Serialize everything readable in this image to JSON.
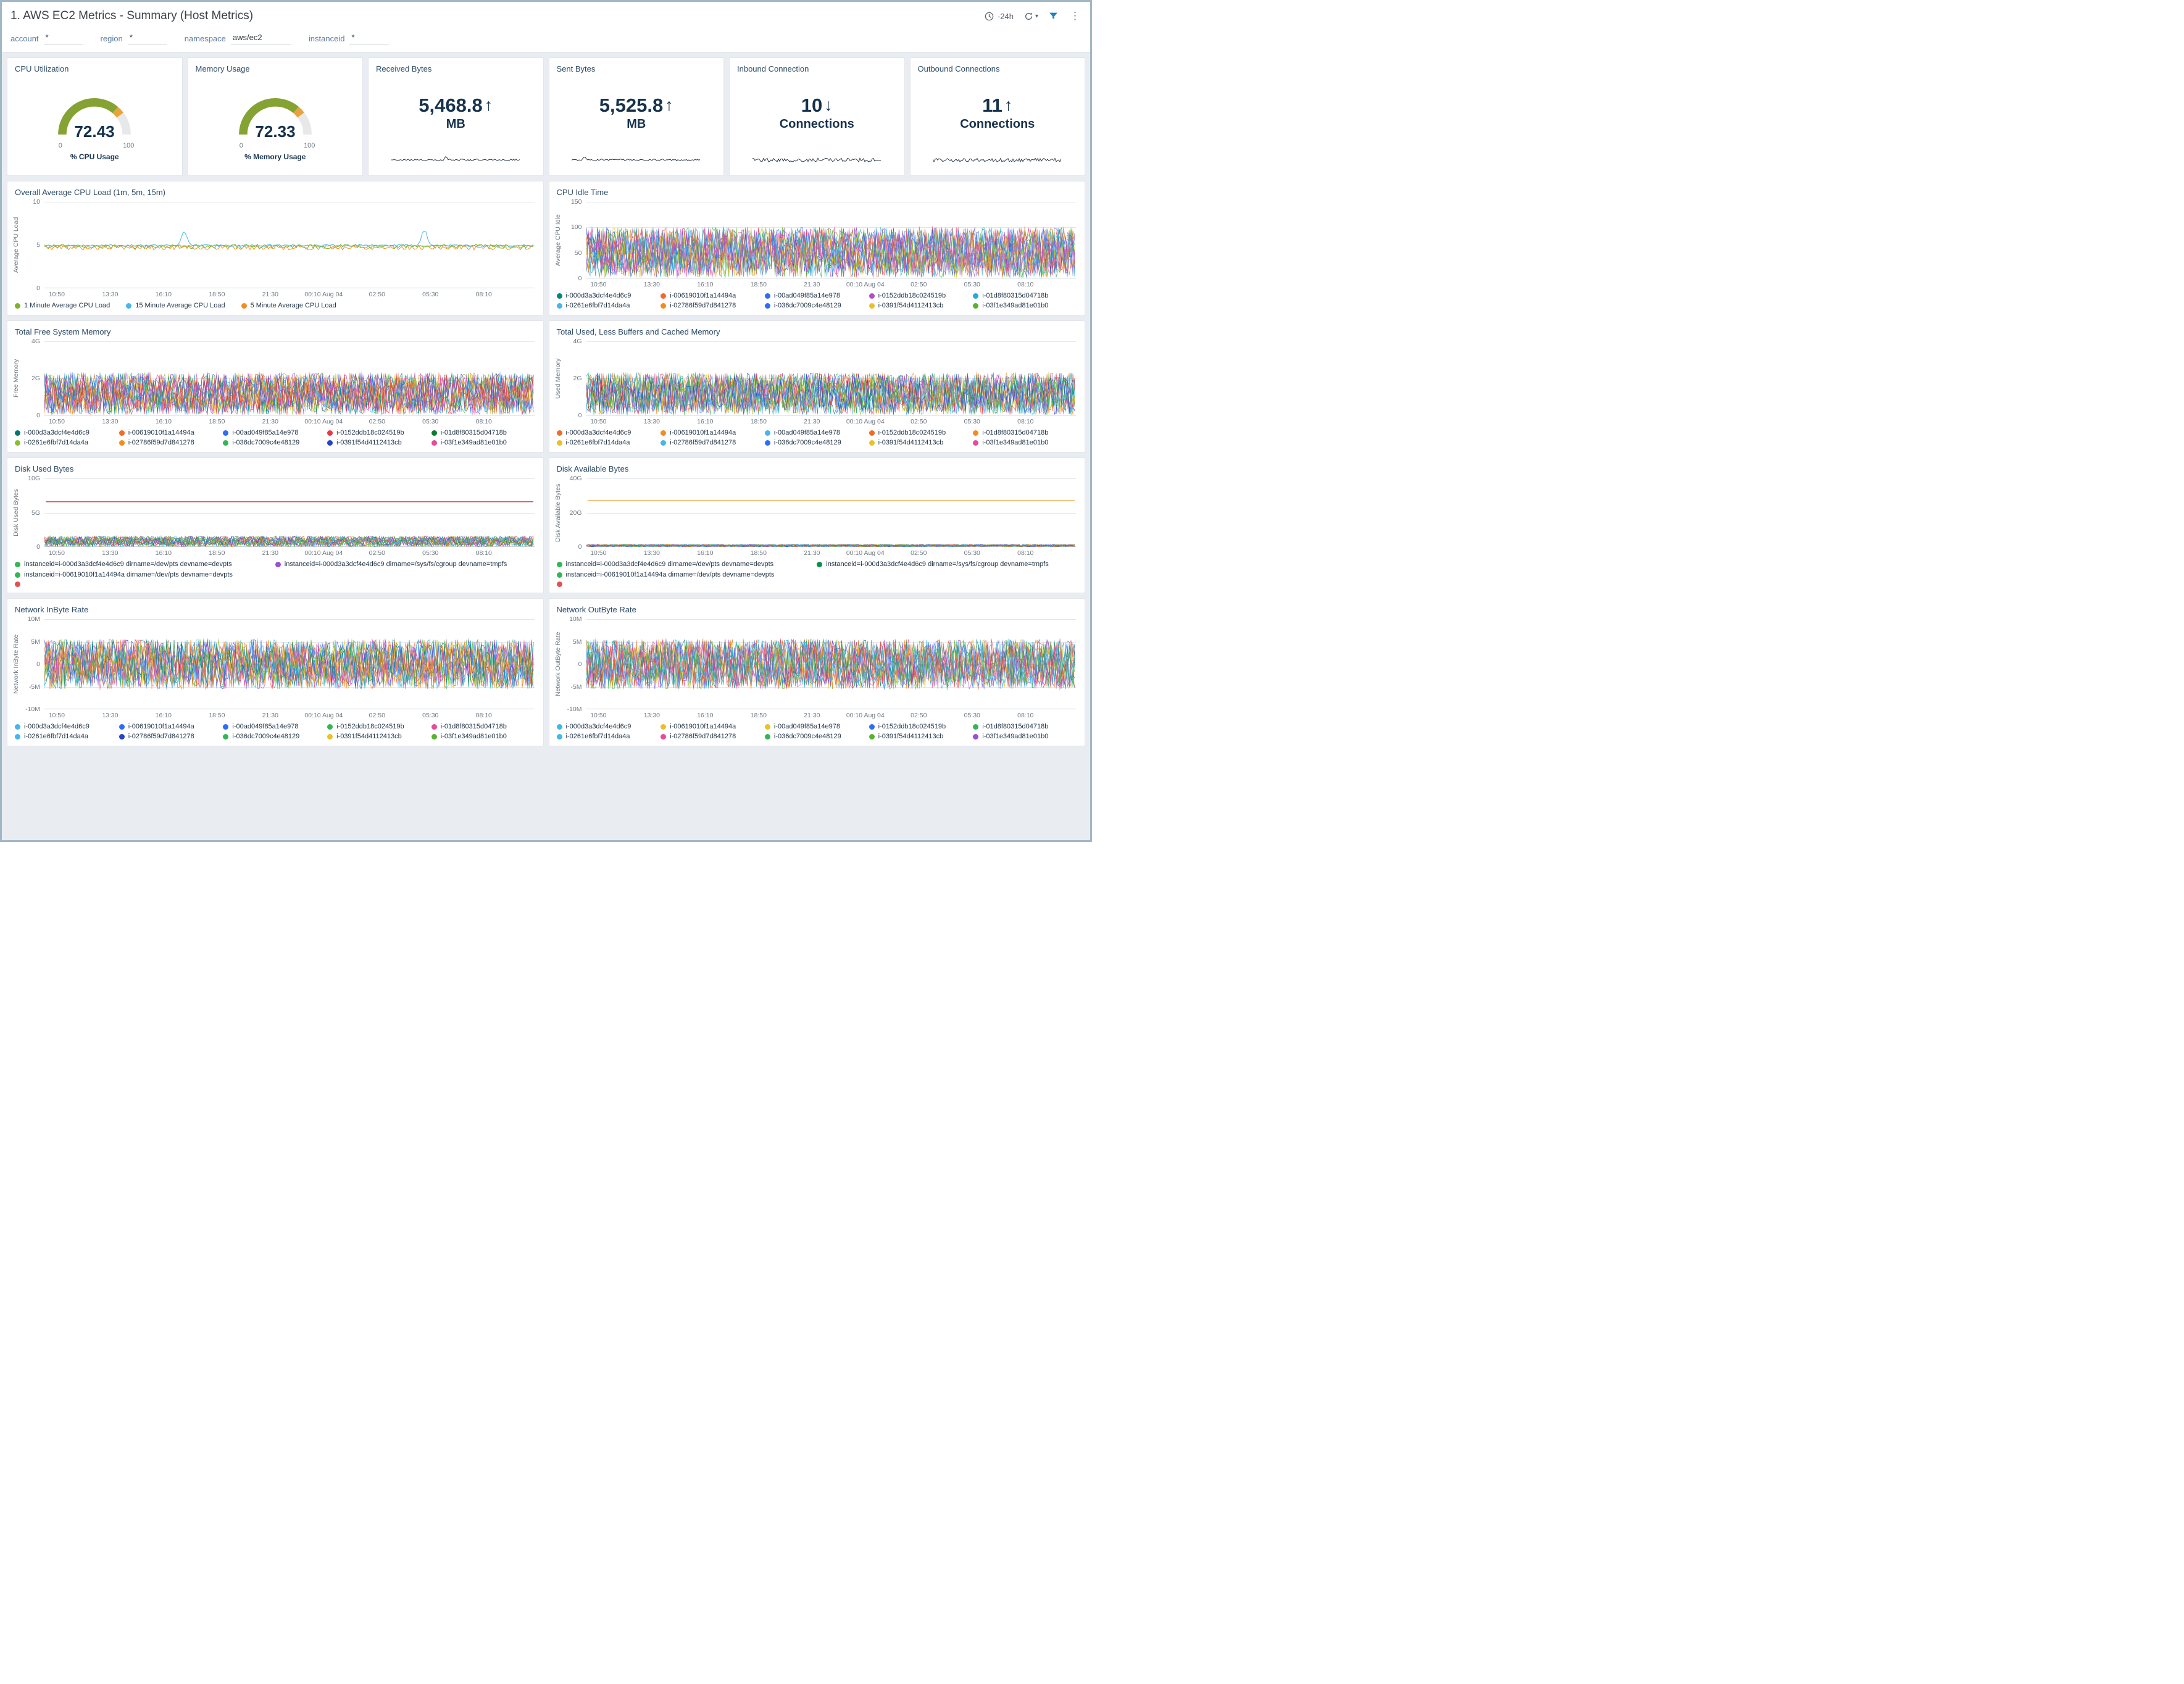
{
  "header": {
    "title": "1. AWS EC2 Metrics - Summary (Host Metrics)",
    "time_range": "-24h"
  },
  "filters": [
    {
      "label": "account",
      "value": "*"
    },
    {
      "label": "region",
      "value": "*"
    },
    {
      "label": "namespace",
      "value": "aws/ec2"
    },
    {
      "label": "instanceid",
      "value": "*"
    }
  ],
  "kpis": {
    "cpu": {
      "title": "CPU Utilization",
      "value": "72.43",
      "value_num": 72.43,
      "min": "0",
      "max": "100",
      "caption": "% CPU Usage"
    },
    "mem": {
      "title": "Memory Usage",
      "value": "72.33",
      "value_num": 72.33,
      "min": "0",
      "max": "100",
      "caption": "% Memory Usage"
    },
    "received": {
      "title": "Received Bytes",
      "value": "5,468.8",
      "arrow": "↑",
      "unit": "MB"
    },
    "sent": {
      "title": "Sent Bytes",
      "value": "5,525.8",
      "arrow": "↑",
      "unit": "MB"
    },
    "inbound": {
      "title": "Inbound Connection",
      "value": "10",
      "arrow": "↓",
      "unit": "Connections"
    },
    "outbound": {
      "title": "Outbound Connections",
      "value": "11",
      "arrow": "↑",
      "unit": "Connections"
    }
  },
  "gauge_colors": {
    "green": "#84a333",
    "orange": "#e8a33d",
    "track": "#e6e8ea"
  },
  "palette": [
    "#58b32f",
    "#f26b27",
    "#2f6df6",
    "#b24fc8",
    "#29a5e8",
    "#e8c227",
    "#e84b9a",
    "#00877c",
    "#f28e1c",
    "#6a5acd",
    "#e63946",
    "#35b558",
    "#45b7e8",
    "#8bbf2f",
    "#2743c7",
    "#d4672f",
    "#9a4fd4",
    "#1ca9a9"
  ],
  "xticks": [
    "10:50",
    "13:30",
    "16:10",
    "18:50",
    "21:30",
    "00:10 Aug 04",
    "02:50",
    "05:30",
    "08:10"
  ],
  "sparks": {
    "received": {
      "amp": 3,
      "bump": {
        "at": 0.42,
        "h": 6
      },
      "seed": 21,
      "color": "#1c2b39"
    },
    "sent": {
      "amp": 3,
      "bump": {
        "at": 0.1,
        "h": 4
      },
      "seed": 22,
      "color": "#1c2b39"
    },
    "inbound": {
      "amp": 6,
      "seed": 23,
      "color": "#1c2b39"
    },
    "outbound": {
      "amp": 6,
      "seed": 24,
      "color": "#1c2b39"
    }
  },
  "charts": {
    "cpuLoad": {
      "title": "Overall Average CPU Load (1m, 5m, 15m)",
      "ylabel": "Average CPU Load",
      "ylim": [
        0,
        10
      ],
      "yticks": [
        {
          "v": 0,
          "label": "0"
        },
        {
          "v": 5,
          "label": "5"
        },
        {
          "v": 10,
          "label": "10"
        }
      ],
      "legend": [
        {
          "label": "1 Minute Average CPU Load",
          "color": "#7db32a"
        },
        {
          "label": "15 Minute Average CPU Load",
          "color": "#45b7e8"
        },
        {
          "label": "5 Minute Average CPU Load",
          "color": "#f28e1c"
        }
      ],
      "render": {
        "kind": "cpuload",
        "spikes": [
          [
            0.285,
            6.6
          ],
          [
            0.775,
            6.7
          ]
        ]
      },
      "seed": 5
    },
    "cpuIdle": {
      "title": "CPU Idle Time",
      "ylabel": "Average CPU Idle",
      "ylim": [
        0,
        150
      ],
      "yticks": [
        {
          "v": 0,
          "label": "0"
        },
        {
          "v": 50,
          "label": "50"
        },
        {
          "v": 100,
          "label": "100"
        },
        {
          "v": 150,
          "label": "150"
        }
      ],
      "legend": [
        {
          "label": "i-000d3a3dcf4e4d6c9",
          "color": "#00877c"
        },
        {
          "label": "i-00619010f1a14494a",
          "color": "#f26b27"
        },
        {
          "label": "i-00ad049f85a14e978",
          "color": "#2f6df6"
        },
        {
          "label": "i-0152ddb18c024519b",
          "color": "#b24fc8"
        },
        {
          "label": "i-01d8f80315d04718b",
          "color": "#29a5e8"
        },
        {
          "label": "i-0261e6fbf7d14da4a",
          "color": "#45b7e8"
        },
        {
          "label": "i-02786f59d7d841278",
          "color": "#f28e1c"
        },
        {
          "label": "i-036dc7009c4e48129",
          "color": "#2f6df6"
        },
        {
          "label": "i-0391f54d4112413cb",
          "color": "#e8c227"
        },
        {
          "label": "i-03f1e349ad81e01b0",
          "color": "#58b32f"
        }
      ],
      "render": {
        "kind": "band",
        "min": 2,
        "max": 100,
        "lines": 16
      },
      "seed": 9
    },
    "freeMem": {
      "title": "Total Free System Memory",
      "ylabel": "Free Memory",
      "ylim": [
        0,
        4
      ],
      "yticks": [
        {
          "v": 0,
          "label": "0"
        },
        {
          "v": 2,
          "label": "2G"
        },
        {
          "v": 4,
          "label": "4G"
        }
      ],
      "legend": [
        {
          "label": "i-000d3a3dcf4e4d6c9",
          "color": "#00786b"
        },
        {
          "label": "i-00619010f1a14494a",
          "color": "#f26b27"
        },
        {
          "label": "i-00ad049f85a14e978",
          "color": "#2f6df6"
        },
        {
          "label": "i-0152ddb18c024519b",
          "color": "#e63946"
        },
        {
          "label": "i-01d8f80315d04718b",
          "color": "#0b7a34"
        },
        {
          "label": "i-0261e6fbf7d14da4a",
          "color": "#8bbf2f"
        },
        {
          "label": "i-02786f59d7d841278",
          "color": "#f28e1c"
        },
        {
          "label": "i-036dc7009c4e48129",
          "color": "#35b558"
        },
        {
          "label": "i-0391f54d4112413cb",
          "color": "#2743c7"
        },
        {
          "label": "i-03f1e349ad81e01b0",
          "color": "#e84b9a"
        }
      ],
      "render": {
        "kind": "band",
        "min": 0.05,
        "max": 2.3,
        "lines": 16
      },
      "seed": 13
    },
    "usedMem": {
      "title": "Total Used, Less Buffers and Cached Memory",
      "ylabel": "Used Memory",
      "ylim": [
        0,
        4
      ],
      "yticks": [
        {
          "v": 0,
          "label": "0"
        },
        {
          "v": 2,
          "label": "2G"
        },
        {
          "v": 4,
          "label": "4G"
        }
      ],
      "legend": [
        {
          "label": "i-000d3a3dcf4e4d6c9",
          "color": "#f26b27"
        },
        {
          "label": "i-00619010f1a14494a",
          "color": "#f28e1c"
        },
        {
          "label": "i-00ad049f85a14e978",
          "color": "#45b7e8"
        },
        {
          "label": "i-0152ddb18c024519b",
          "color": "#f26b27"
        },
        {
          "label": "i-01d8f80315d04718b",
          "color": "#f28e1c"
        },
        {
          "label": "i-0261e6fbf7d14da4a",
          "color": "#e8c227"
        },
        {
          "label": "i-02786f59d7d841278",
          "color": "#45b7e8"
        },
        {
          "label": "i-036dc7009c4e48129",
          "color": "#2f6df6"
        },
        {
          "label": "i-0391f54d4112413cb",
          "color": "#e8c227"
        },
        {
          "label": "i-03f1e349ad81e01b0",
          "color": "#e84b9a"
        }
      ],
      "render": {
        "kind": "band",
        "min": 0.05,
        "max": 2.3,
        "lines": 16
      },
      "seed": 17
    },
    "diskUsed": {
      "title": "Disk Used Bytes",
      "ylabel": "Disk Used Bytes",
      "ylim": [
        0,
        10
      ],
      "yticks": [
        {
          "v": 0,
          "label": "0"
        },
        {
          "v": 5,
          "label": "5G"
        },
        {
          "v": 10,
          "label": "10G"
        }
      ],
      "legend": [
        {
          "label": "instanceid=i-000d3a3dcf4e4d6c9 dirname=/dev/pts devname=devpts",
          "color": "#35b558"
        },
        {
          "label": "instanceid=i-000d3a3dcf4e4d6c9 dirname=/sys/fs/cgroup devname=tmpfs",
          "color": "#9a4fd4"
        },
        {
          "label": "instanceid=i-00619010f1a14494a dirname=/dev/pts devname=devpts",
          "color": "#35b558"
        },
        {
          "label": "",
          "color": "#e05252"
        }
      ],
      "render": {
        "kind": "band",
        "min": 0.05,
        "max": 1.6,
        "lines": 16,
        "consts": [
          {
            "v": 6.6,
            "color": "#e05252"
          }
        ]
      },
      "seed": 21
    },
    "diskAvail": {
      "title": "Disk Available Bytes",
      "ylabel": "Disk Available Bytes",
      "ylim": [
        0,
        40
      ],
      "yticks": [
        {
          "v": 0,
          "label": "0"
        },
        {
          "v": 20,
          "label": "20G"
        },
        {
          "v": 40,
          "label": "40G"
        }
      ],
      "legend": [
        {
          "label": "instanceid=i-000d3a3dcf4e4d6c9 dirname=/dev/pts devname=devpts",
          "color": "#35b558"
        },
        {
          "label": "instanceid=i-000d3a3dcf4e4d6c9 dirname=/sys/fs/cgroup devname=tmpfs",
          "color": "#0c8f4a"
        },
        {
          "label": "instanceid=i-00619010f1a14494a dirname=/dev/pts devname=devpts",
          "color": "#35b558"
        },
        {
          "label": "",
          "color": "#e05252"
        }
      ],
      "render": {
        "kind": "band",
        "min": 0.1,
        "max": 1.5,
        "lines": 14,
        "consts": [
          {
            "v": 27,
            "color": "#eaa63c"
          }
        ]
      },
      "seed": 25
    },
    "netIn": {
      "title": "Network InByte Rate",
      "ylabel": "Network InByte Rate",
      "ylim": [
        -10,
        10
      ],
      "yticks": [
        {
          "v": -10,
          "label": "-10M"
        },
        {
          "v": -5,
          "label": "-5M"
        },
        {
          "v": 0,
          "label": "0"
        },
        {
          "v": 5,
          "label": "5M"
        },
        {
          "v": 10,
          "label": "10M"
        }
      ],
      "legend": [
        {
          "label": "i-000d3a3dcf4e4d6c9",
          "color": "#45b7e8"
        },
        {
          "label": "i-00619010f1a14494a",
          "color": "#2f6df6"
        },
        {
          "label": "i-00ad049f85a14e978",
          "color": "#2f6df6"
        },
        {
          "label": "i-0152ddb18c024519b",
          "color": "#35b558"
        },
        {
          "label": "i-01d8f80315d04718b",
          "color": "#e84b9a"
        },
        {
          "label": "i-0261e6fbf7d14da4a",
          "color": "#45b7e8"
        },
        {
          "label": "i-02786f59d7d841278",
          "color": "#2743c7"
        },
        {
          "label": "i-036dc7009c4e48129",
          "color": "#35b558"
        },
        {
          "label": "i-0391f54d4112413cb",
          "color": "#e8c227"
        },
        {
          "label": "i-03f1e349ad81e01b0",
          "color": "#58b32f"
        }
      ],
      "render": {
        "kind": "band",
        "min": -5.5,
        "max": 5.5,
        "lines": 16
      },
      "seed": 29
    },
    "netOut": {
      "title": "Network OutByte Rate",
      "ylabel": "Network OutByte Rate",
      "ylim": [
        -10,
        10
      ],
      "yticks": [
        {
          "v": -10,
          "label": "-10M"
        },
        {
          "v": -5,
          "label": "-5M"
        },
        {
          "v": 0,
          "label": "0"
        },
        {
          "v": 5,
          "label": "5M"
        },
        {
          "v": 10,
          "label": "10M"
        }
      ],
      "legend": [
        {
          "label": "i-000d3a3dcf4e4d6c9",
          "color": "#45b7e8"
        },
        {
          "label": "i-00619010f1a14494a",
          "color": "#e8c227"
        },
        {
          "label": "i-00ad049f85a14e978",
          "color": "#e8c227"
        },
        {
          "label": "i-0152ddb18c024519b",
          "color": "#2f6df6"
        },
        {
          "label": "i-01d8f80315d04718b",
          "color": "#35b558"
        },
        {
          "label": "i-0261e6fbf7d14da4a",
          "color": "#45b7e8"
        },
        {
          "label": "i-02786f59d7d841278",
          "color": "#e84b9a"
        },
        {
          "label": "i-036dc7009c4e48129",
          "color": "#35b558"
        },
        {
          "label": "i-0391f54d4112413cb",
          "color": "#58b32f"
        },
        {
          "label": "i-03f1e349ad81e01b0",
          "color": "#9a4fd4"
        }
      ],
      "render": {
        "kind": "band",
        "min": -5.5,
        "max": 5.5,
        "lines": 16
      },
      "seed": 33
    }
  }
}
